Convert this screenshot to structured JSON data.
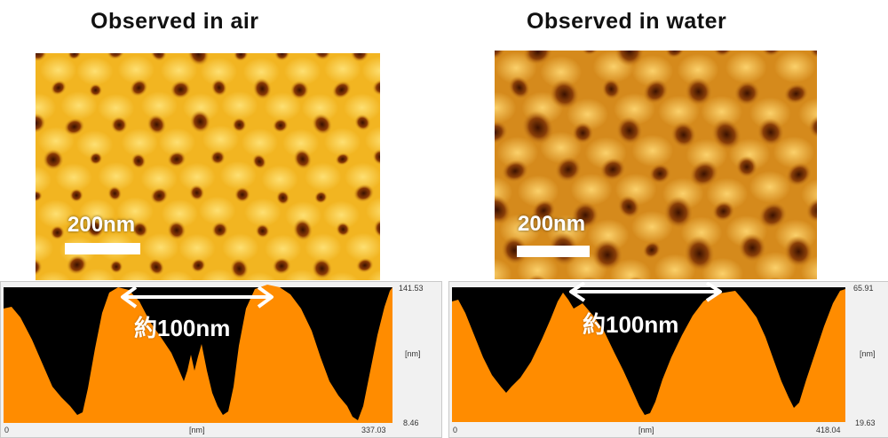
{
  "panels": [
    {
      "title": "Observed in air",
      "scale_label": "200nm",
      "spacing_label": "約100nm",
      "profile": {
        "y_max": "141.53",
        "y_min": "8.46",
        "y_unit": "[nm]",
        "x_min": "0",
        "x_unit": "[nm]",
        "x_max": "337.03"
      },
      "colors": {
        "surface": "#f2b521",
        "pore": "#4a1600",
        "profile_fill": "#ff8c00"
      }
    },
    {
      "title": "Observed in water",
      "scale_label": "200nm",
      "spacing_label": "約100nm",
      "profile": {
        "y_max": "65.91",
        "y_min": "19.63",
        "y_unit": "[nm]",
        "x_min": "0",
        "x_unit": "[nm]",
        "x_max": "418.04"
      },
      "colors": {
        "surface": "#d58a1c",
        "pore": "#4a1600",
        "profile_fill": "#ff8c00"
      }
    }
  ]
}
